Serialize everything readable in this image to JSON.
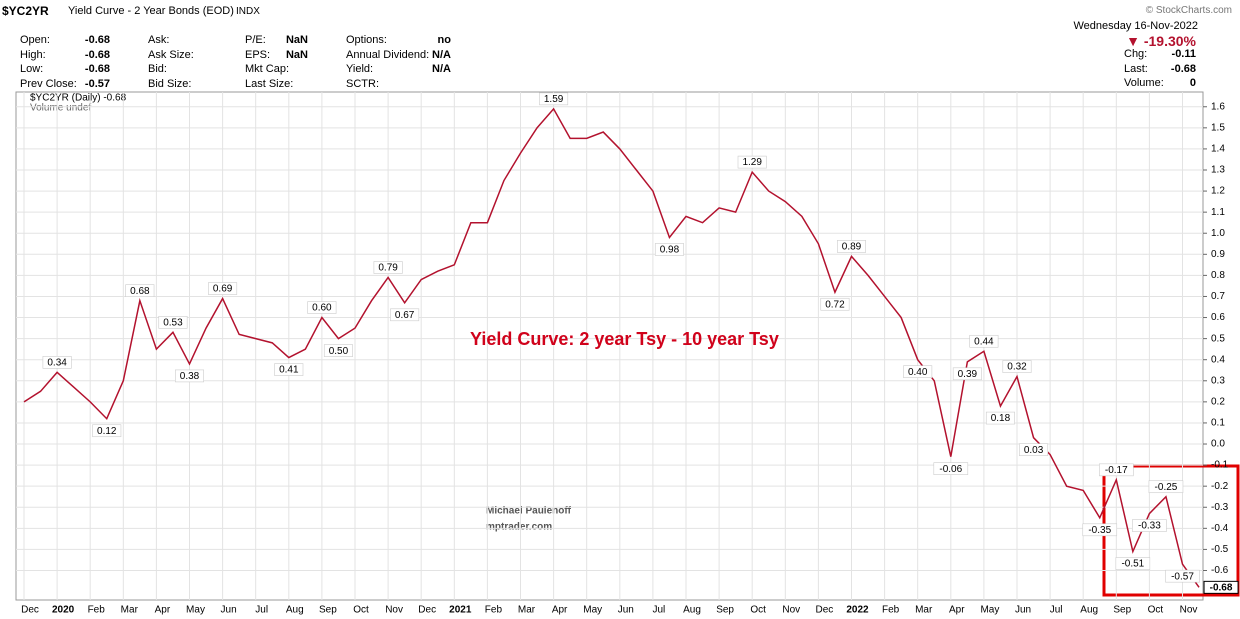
{
  "header": {
    "symbol": "$YC2YR",
    "name": "Yield Curve - 2 Year Bonds (EOD)",
    "exchange": "INDX",
    "copyright": "© StockCharts.com",
    "date": "Wednesday  16-Nov-2022",
    "change_pct": "▼ -19.30%",
    "columns": [
      [
        {
          "label": "Open:",
          "value": "-0.68"
        },
        {
          "label": "High:",
          "value": "-0.68"
        },
        {
          "label": "Low:",
          "value": "-0.68"
        },
        {
          "label": "Prev Close:",
          "value": "-0.57"
        }
      ],
      [
        {
          "label": "Ask:"
        },
        {
          "label": "Ask Size:"
        },
        {
          "label": "Bid:"
        },
        {
          "label": "Bid Size:"
        }
      ],
      [
        {
          "label": "P/E:",
          "value": "NaN"
        },
        {
          "label": "EPS:",
          "value": "NaN"
        },
        {
          "label": "Mkt Cap:"
        },
        {
          "label": "Last Size:"
        }
      ],
      [
        {
          "label": "Options:",
          "value": "no"
        },
        {
          "label": "Annual Dividend:",
          "value": "N/A"
        },
        {
          "label": "Yield:",
          "value": "N/A"
        },
        {
          "label": "SCTR:"
        }
      ]
    ],
    "right": [
      {
        "label": "Chg:",
        "value": "-0.11"
      },
      {
        "label": "Last:",
        "value": "-0.68"
      },
      {
        "label": "Volume:",
        "value": "0"
      }
    ]
  },
  "chart_data": {
    "type": "line",
    "volume_note": "Volume undef",
    "annotations": [
      "Yield Curve: 2 year Tsy - 10 year Tsy"
    ],
    "watermark": [
      "Michael Paulenoff",
      "mptrader.com"
    ],
    "categories": [
      "Dec",
      null,
      "2020",
      null,
      "Feb",
      null,
      "Mar",
      null,
      "Apr",
      null,
      "May",
      null,
      "Jun",
      null,
      "Jul",
      null,
      "Aug",
      null,
      "Sep",
      null,
      "Oct",
      null,
      "Nov",
      null,
      "Dec",
      null,
      "2021",
      null,
      "Feb",
      null,
      "Mar",
      null,
      "Apr",
      null,
      "May",
      null,
      "Jun",
      null,
      "Jul",
      null,
      "Aug",
      null,
      "Sep",
      null,
      "Oct",
      null,
      "Nov",
      null,
      "Dec",
      null,
      "2022",
      null,
      "Feb",
      null,
      "Mar",
      null,
      "Apr",
      null,
      "May",
      null,
      "Jun",
      null,
      "Jul",
      null,
      "Aug",
      null,
      "Sep",
      null,
      "Oct",
      null,
      "Nov",
      null
    ],
    "series": [
      {
        "name": "$YC2YR (Daily) -0.68",
        "color": "#b3122e",
        "values": [
          0.2,
          0.25,
          0.34,
          0.27,
          0.2,
          0.12,
          0.3,
          0.68,
          0.45,
          0.53,
          0.38,
          0.55,
          0.69,
          0.52,
          0.5,
          0.48,
          0.41,
          0.45,
          0.6,
          0.5,
          0.55,
          0.68,
          0.79,
          0.67,
          0.78,
          0.82,
          0.85,
          1.05,
          1.05,
          1.25,
          1.38,
          1.5,
          1.59,
          1.45,
          1.45,
          1.48,
          1.4,
          1.3,
          1.2,
          0.98,
          1.08,
          1.05,
          1.12,
          1.1,
          1.29,
          1.2,
          1.15,
          1.08,
          0.95,
          0.72,
          0.89,
          0.8,
          0.7,
          0.6,
          0.4,
          0.3,
          -0.06,
          0.39,
          0.44,
          0.18,
          0.32,
          0.03,
          -0.05,
          -0.2,
          -0.22,
          -0.35,
          -0.17,
          -0.51,
          -0.33,
          -0.25,
          -0.57,
          -0.68
        ],
        "value_labels": [
          null,
          null,
          "0.34",
          null,
          null,
          "0.12",
          null,
          "0.68",
          null,
          "0.53",
          "0.38",
          null,
          "0.69",
          null,
          null,
          null,
          "0.41",
          null,
          "0.60",
          "0.50",
          null,
          null,
          "0.79",
          "0.67",
          null,
          null,
          null,
          null,
          null,
          null,
          null,
          null,
          "1.59",
          null,
          null,
          null,
          null,
          null,
          null,
          "0.98",
          null,
          null,
          null,
          null,
          "1.29",
          null,
          null,
          null,
          null,
          "0.72",
          "0.89",
          null,
          null,
          null,
          "0.40",
          null,
          "-0.06",
          "0.39",
          "0.44",
          "0.18",
          "0.32",
          "0.03",
          null,
          null,
          null,
          "-0.35",
          "-0.17",
          "-0.51",
          "-0.33",
          "-0.25",
          "-0.57",
          "-0.68"
        ]
      }
    ],
    "ylim": [
      -0.74,
      1.67
    ],
    "yticks": [
      1.6,
      1.5,
      1.4,
      1.3,
      1.2,
      1.1,
      {
        "value": 1,
        "label": "1.0"
      },
      0.9,
      0.8,
      0.7,
      0.6,
      0.5,
      0.4,
      0.3,
      0.2,
      0.1,
      {
        "value": 0,
        "label": "0.0"
      },
      -0.1,
      -0.2,
      -0.3,
      -0.4,
      -0.5,
      -0.6
    ],
    "grid": true,
    "grid_color": "#e3e3e3"
  }
}
